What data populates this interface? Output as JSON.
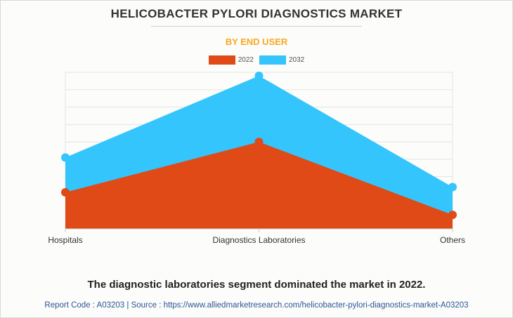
{
  "header": {
    "title": "HELICOBACTER PYLORI DIAGNOSTICS MARKET",
    "subtitle": "BY END USER"
  },
  "colors": {
    "accent": "#f7a823",
    "series_2022": "#e04a17",
    "series_2032": "#33c5fb",
    "grid": "#e3e3e3"
  },
  "chart_data": {
    "type": "area",
    "title": "HELICOBACTER PYLORI DIAGNOSTICS MARKET",
    "subtitle": "BY END USER",
    "categories": [
      "Hospitals",
      "Diagnostics Laboratories",
      "Others"
    ],
    "series": [
      {
        "name": "2032",
        "values": [
          0.41,
          0.88,
          0.24
        ]
      },
      {
        "name": "2022",
        "values": [
          0.21,
          0.5,
          0.08
        ]
      }
    ],
    "ylim": [
      0,
      0.9
    ],
    "grid": true,
    "legend": "top-center"
  },
  "footer": {
    "conclusion": "The diagnostic laboratories segment dominated the market in 2022.",
    "source": "Report Code : A03203  |  Source : https://www.alliedmarketresearch.com/helicobacter-pylori-diagnostics-market-A03203"
  }
}
